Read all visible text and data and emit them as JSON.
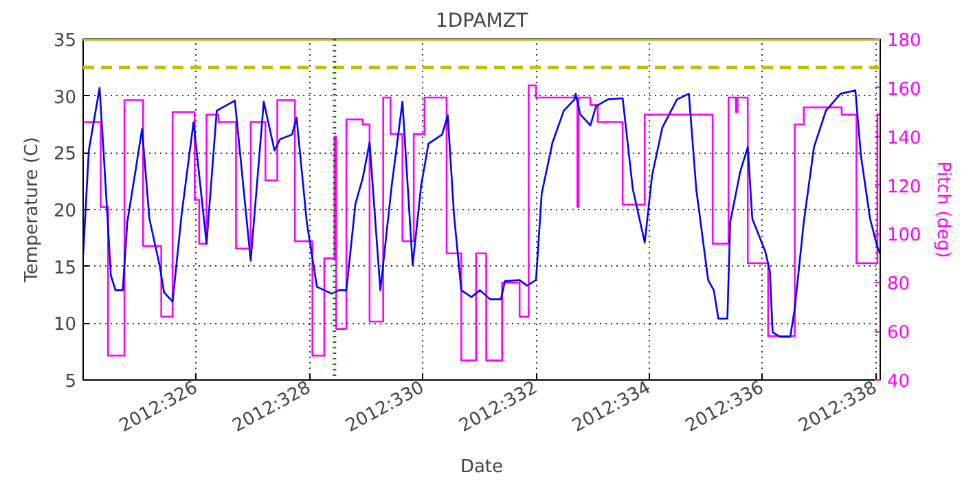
{
  "chart_data": {
    "type": "line",
    "title": "1DPAMZT",
    "xlabel": "Date",
    "ylabel": "Temperature (C)",
    "y2label": "Pitch (deg)",
    "xlim": [
      "2012-11-19T00:00",
      "2012-12-03T01:55"
    ],
    "xticks": [
      {
        "value": "2012-11-21",
        "label": "2012:326"
      },
      {
        "value": "2012-11-23",
        "label": "2012:328"
      },
      {
        "value": "2012-11-25",
        "label": "2012:330"
      },
      {
        "value": "2012-11-27",
        "label": "2012:332"
      },
      {
        "value": "2012-11-29",
        "label": "2012:334"
      },
      {
        "value": "2012-12-01",
        "label": "2012:336"
      },
      {
        "value": "2012-12-03",
        "label": "2012:338"
      }
    ],
    "ylim": [
      5,
      35
    ],
    "yticks": [
      5,
      10,
      15,
      20,
      25,
      30,
      35
    ],
    "y2lim": [
      40,
      180
    ],
    "y2ticks": [
      40,
      60,
      80,
      100,
      120,
      140,
      160,
      180
    ],
    "grid": true,
    "series": [
      {
        "color": "#0000ff",
        "x": [
          "2012-11-19T00:00",
          "2012-11-19T02:24",
          "2012-11-19T06:58",
          "2012-11-19T08:38",
          "2012-11-19T11:46",
          "2012-11-19T13:41",
          "2012-11-19T16:48",
          "2012-11-19T18:43",
          "2012-11-19T22:34",
          "2012-11-20T00:58",
          "2012-11-20T04:05",
          "2012-11-20T08:24",
          "2012-11-20T10:19",
          "2012-11-20T13:55",
          "2012-11-20T17:46",
          "2012-11-20T22:48",
          "2012-11-21T04:19",
          "2012-11-21T08:38",
          "2012-11-21T16:19",
          "2012-11-21T23:02",
          "2012-11-22T04:34",
          "2012-11-22T09:07",
          "2012-11-22T11:31",
          "2012-11-22T16:34",
          "2012-11-22T18:29",
          "2012-11-22T22:48",
          "2012-11-23T03:07",
          "2012-11-23T09:22",
          "2012-11-23T12:29",
          "2012-11-23T15:36",
          "2012-11-23T19:26",
          "2012-11-23T22:34",
          "2012-11-24T01:26",
          "2012-11-24T06:00",
          "2012-11-24T10:48",
          "2012-11-24T15:22",
          "2012-11-24T19:41",
          "2012-11-24T23:17",
          "2012-11-25T02:24",
          "2012-11-25T08:10",
          "2012-11-25T10:34",
          "2012-11-25T13:12",
          "2012-11-25T16:19",
          "2012-11-25T20:38",
          "2012-11-26T00:14",
          "2012-11-26T04:34",
          "2012-11-26T09:07",
          "2012-11-26T10:48",
          "2012-11-26T17:02",
          "2012-11-26T20:10",
          "2012-11-27T00:00",
          "2012-11-27T02:24",
          "2012-11-27T06:58",
          "2012-11-27T11:46",
          "2012-11-27T16:19",
          "2012-11-27T16:48",
          "2012-11-27T18:43",
          "2012-11-27T23:02",
          "2012-11-28T01:26",
          "2012-11-28T06:29",
          "2012-11-28T12:43",
          "2012-11-28T17:02",
          "2012-11-28T22:05",
          "2012-11-29T01:12",
          "2012-11-29T05:31",
          "2012-11-29T11:46",
          "2012-11-29T14:53",
          "2012-11-29T16:48",
          "2012-11-29T19:55",
          "2012-11-30T00:58",
          "2012-11-30T03:22",
          "2012-11-30T05:17",
          "2012-11-30T09:07",
          "2012-11-30T10:19",
          "2012-11-30T14:38",
          "2012-11-30T17:46",
          "2012-11-30T19:41",
          "2012-12-01T01:12",
          "2012-12-01T03:07",
          "2012-12-01T04:19",
          "2012-12-01T07:26",
          "2012-12-01T11:46",
          "2012-12-01T13:41",
          "2012-12-01T17:31",
          "2012-12-01T21:50",
          "2012-12-02T02:53",
          "2012-12-02T09:07",
          "2012-12-02T15:22",
          "2012-12-02T17:46",
          "2012-12-02T21:36",
          "2012-12-03T00:43",
          "2012-12-03T01:55"
        ],
        "values": [
          16,
          25.2,
          30.7,
          25.2,
          14.2,
          12.9,
          12.9,
          18.9,
          23.9,
          27.1,
          19.2,
          15.1,
          12.7,
          11.9,
          19.6,
          27.7,
          17.0,
          28.7,
          29.6,
          15.5,
          29.5,
          25.2,
          26.2,
          26.6,
          28.1,
          18.9,
          13.2,
          12.6,
          12.9,
          12.9,
          20.5,
          22.8,
          25.9,
          12.9,
          22.1,
          29.5,
          15.1,
          22.1,
          25.8,
          26.6,
          28.3,
          19.6,
          12.9,
          12.3,
          12.9,
          12.1,
          12.1,
          13.7,
          13.8,
          13.3,
          13.8,
          21.4,
          25.9,
          28.7,
          29.7,
          30.2,
          28.4,
          27.4,
          29.1,
          29.7,
          29.8,
          21.8,
          17.1,
          23.0,
          27.2,
          29.7,
          30.0,
          30.2,
          21.8,
          13.8,
          12.9,
          10.4,
          10.4,
          18.9,
          23.4,
          25.5,
          19.2,
          16.3,
          14.6,
          9.2,
          8.8,
          8.8,
          11.3,
          18.9,
          25.5,
          28.7,
          30.2,
          30.5,
          24.7,
          19.2,
          16.7,
          16.1
        ]
      },
      {
        "type": "step",
        "axis": "y2",
        "color": "#ff00ff",
        "x": [
          "2012-11-19T00:00",
          "2012-11-19T07:26",
          "2012-11-19T10:34",
          "2012-11-19T17:31",
          "2012-11-20T01:26",
          "2012-11-20T09:07",
          "2012-11-20T13:55",
          "2012-11-20T23:17",
          "2012-11-21T01:12",
          "2012-11-21T04:19",
          "2012-11-21T09:22",
          "2012-11-21T16:48",
          "2012-11-21T23:02",
          "2012-11-22T05:17",
          "2012-11-22T10:19",
          "2012-11-22T17:46",
          "2012-11-23T01:12",
          "2012-11-23T06:14",
          "2012-11-23T10:34",
          "2012-11-23T11:17",
          "2012-11-23T15:36",
          "2012-11-23T22:34",
          "2012-11-24T01:26",
          "2012-11-24T07:12",
          "2012-11-24T10:19",
          "2012-11-24T15:22",
          "2012-11-24T20:10",
          "2012-11-25T00:43",
          "2012-11-25T10:05",
          "2012-11-25T16:19",
          "2012-11-25T22:34",
          "2012-11-26T02:53",
          "2012-11-26T09:36",
          "2012-11-26T17:02",
          "2012-11-26T20:53",
          "2012-11-27T00:00",
          "2012-11-27T17:31",
          "2012-11-27T18:00",
          "2012-11-27T23:02",
          "2012-11-28T02:10",
          "2012-11-28T12:43",
          "2012-11-28T22:05",
          "2012-11-30T02:53",
          "2012-11-30T09:36",
          "2012-11-30T12:43",
          "2012-11-30T13:26",
          "2012-11-30T17:46",
          "2012-12-01T02:24",
          "2012-12-01T13:41",
          "2012-12-01T17:31",
          "2012-12-02T09:36",
          "2012-12-02T15:50",
          "2012-12-03T00:43",
          "2012-12-03T01:55"
        ],
        "values": [
          146,
          111,
          50,
          155,
          95,
          66,
          150,
          114,
          96,
          149,
          146,
          94,
          146,
          122,
          155,
          97,
          50,
          90,
          140,
          61,
          147,
          145,
          64,
          156,
          141,
          97,
          141,
          156,
          92,
          48,
          92,
          48,
          80,
          66,
          161,
          156,
          111,
          156,
          153,
          146,
          112,
          149,
          96,
          156,
          150,
          156,
          88,
          58,
          145,
          152,
          149,
          88,
          149,
          149
        ]
      }
    ],
    "ref_lines": [
      {
        "axis": "y",
        "value": 32.5,
        "color": "#bfbf00",
        "line_style": "dashed"
      },
      {
        "axis": "y",
        "value": 35,
        "color": "#bfbf00",
        "line_style": "solid"
      },
      {
        "axis": "x",
        "value": "2012-11-23T10:34",
        "color": "#008000",
        "line_style": "dotted"
      }
    ]
  }
}
